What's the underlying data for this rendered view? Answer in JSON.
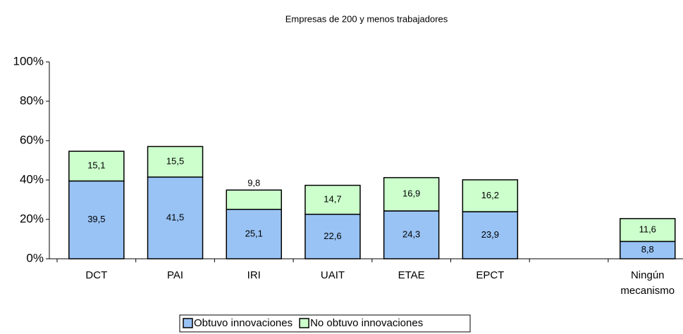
{
  "chart_data": {
    "type": "stacked_bar",
    "title": "Empresas de 200 y menos trabajadores",
    "categories": [
      "DCT",
      "PAI",
      "IRI",
      "UAIT",
      "ETAE",
      "EPCT",
      null,
      "Ningún mecanismo"
    ],
    "series": [
      {
        "name": "Obtuvo innovaciones",
        "color": "#99c3f5",
        "values": [
          39.5,
          41.5,
          25.1,
          22.6,
          24.3,
          23.9,
          null,
          8.8
        ],
        "value_labels": [
          "39,5",
          "41,5",
          "25,1",
          "22,6",
          "24,3",
          "23,9",
          null,
          "8,8"
        ]
      },
      {
        "name": "No obtuvo innovaciones",
        "color": "#ccffcc",
        "values": [
          15.1,
          15.5,
          9.8,
          14.7,
          16.9,
          16.2,
          null,
          11.6
        ],
        "value_labels": [
          "15,1",
          "15,5",
          "9,8",
          "14,7",
          "16,9",
          "16,2",
          null,
          "11,6"
        ]
      }
    ],
    "ylim": [
      0,
      100
    ],
    "yticks": [
      {
        "value": 0,
        "label": "0%"
      },
      {
        "value": 20,
        "label": "20%"
      },
      {
        "value": 40,
        "label": "40%"
      },
      {
        "value": 60,
        "label": "60%"
      },
      {
        "value": 80,
        "label": "80%"
      },
      {
        "value": 100,
        "label": "100%"
      }
    ],
    "legend": "bottom"
  }
}
